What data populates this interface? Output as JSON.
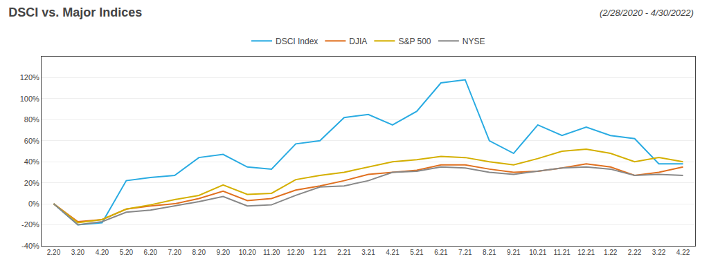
{
  "chart_data": {
    "type": "line",
    "title": "DSCI vs. Major Indices",
    "subtitle": "(2/28/2020 - 4/30/2022)",
    "categories": [
      "2.20",
      "3.20",
      "4.20",
      "5.20",
      "6.20",
      "7.20",
      "8.20",
      "9.20",
      "10.20",
      "11.20",
      "12.20",
      "1.21",
      "2.21",
      "3.21",
      "4.21",
      "5.21",
      "6.21",
      "7.21",
      "8.21",
      "9.21",
      "10.21",
      "11.21",
      "12.21",
      "1.22",
      "2.22",
      "3.22",
      "4.22"
    ],
    "series": [
      {
        "name": "DSCI Index",
        "color": "#29ABE2",
        "values": [
          0,
          -20,
          -18,
          22,
          25,
          27,
          44,
          47,
          35,
          33,
          57,
          60,
          82,
          85,
          75,
          88,
          115,
          118,
          60,
          48,
          75,
          65,
          73,
          65,
          62,
          38,
          38
        ]
      },
      {
        "name": "DJIA",
        "color": "#E07020",
        "values": [
          0,
          -17,
          -15,
          -5,
          -2,
          0,
          5,
          12,
          3,
          5,
          13,
          17,
          22,
          28,
          30,
          32,
          37,
          37,
          33,
          30,
          31,
          34,
          38,
          35,
          27,
          30,
          35
        ]
      },
      {
        "name": "S&P 500",
        "color": "#D4AF00",
        "values": [
          0,
          -18,
          -15,
          -5,
          -1,
          4,
          8,
          18,
          9,
          10,
          23,
          27,
          30,
          35,
          40,
          42,
          45,
          44,
          40,
          37,
          43,
          50,
          52,
          48,
          40,
          44,
          40
        ]
      },
      {
        "name": "NYSE",
        "color": "#888888",
        "values": [
          0,
          -20,
          -17,
          -8,
          -6,
          -2,
          2,
          7,
          -2,
          -1,
          8,
          16,
          17,
          22,
          30,
          31,
          35,
          34,
          30,
          28,
          31,
          34,
          35,
          33,
          27,
          28,
          27
        ]
      }
    ],
    "ylim": [
      -40,
      140
    ],
    "yticks": [
      {
        "value": -40,
        "label": "-40%"
      },
      {
        "value": -20,
        "label": "-20%"
      },
      {
        "value": 0,
        "label": "0%"
      },
      {
        "value": 20,
        "label": "20%"
      },
      {
        "value": 40,
        "label": "40%"
      },
      {
        "value": 60,
        "label": "60%"
      },
      {
        "value": 80,
        "label": "80%"
      },
      {
        "value": 100,
        "label": "100%"
      },
      {
        "value": 120,
        "label": "120%"
      }
    ],
    "grid": true,
    "legend": "top"
  }
}
